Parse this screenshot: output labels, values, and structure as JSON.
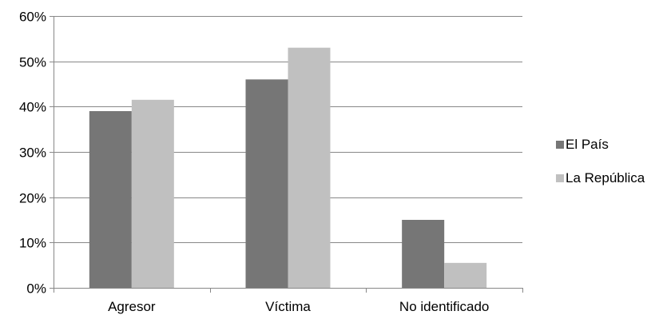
{
  "chart_data": {
    "type": "bar",
    "categories": [
      "Agresor",
      "Víctima",
      "No identificado"
    ],
    "series": [
      {
        "name": "El País",
        "values": [
          39,
          46,
          15
        ],
        "color": "#767676"
      },
      {
        "name": "La República",
        "values": [
          41.5,
          53,
          5.5
        ],
        "color": "#c0c0c0"
      }
    ],
    "ylim": [
      0,
      60
    ],
    "yticks": [
      "0%",
      "10%",
      "20%",
      "30%",
      "40%",
      "50%",
      "60%"
    ],
    "ytick_values": [
      0,
      10,
      20,
      30,
      40,
      50,
      60
    ],
    "grid": true,
    "legend_position": "right",
    "gridline_color": "#888888"
  }
}
